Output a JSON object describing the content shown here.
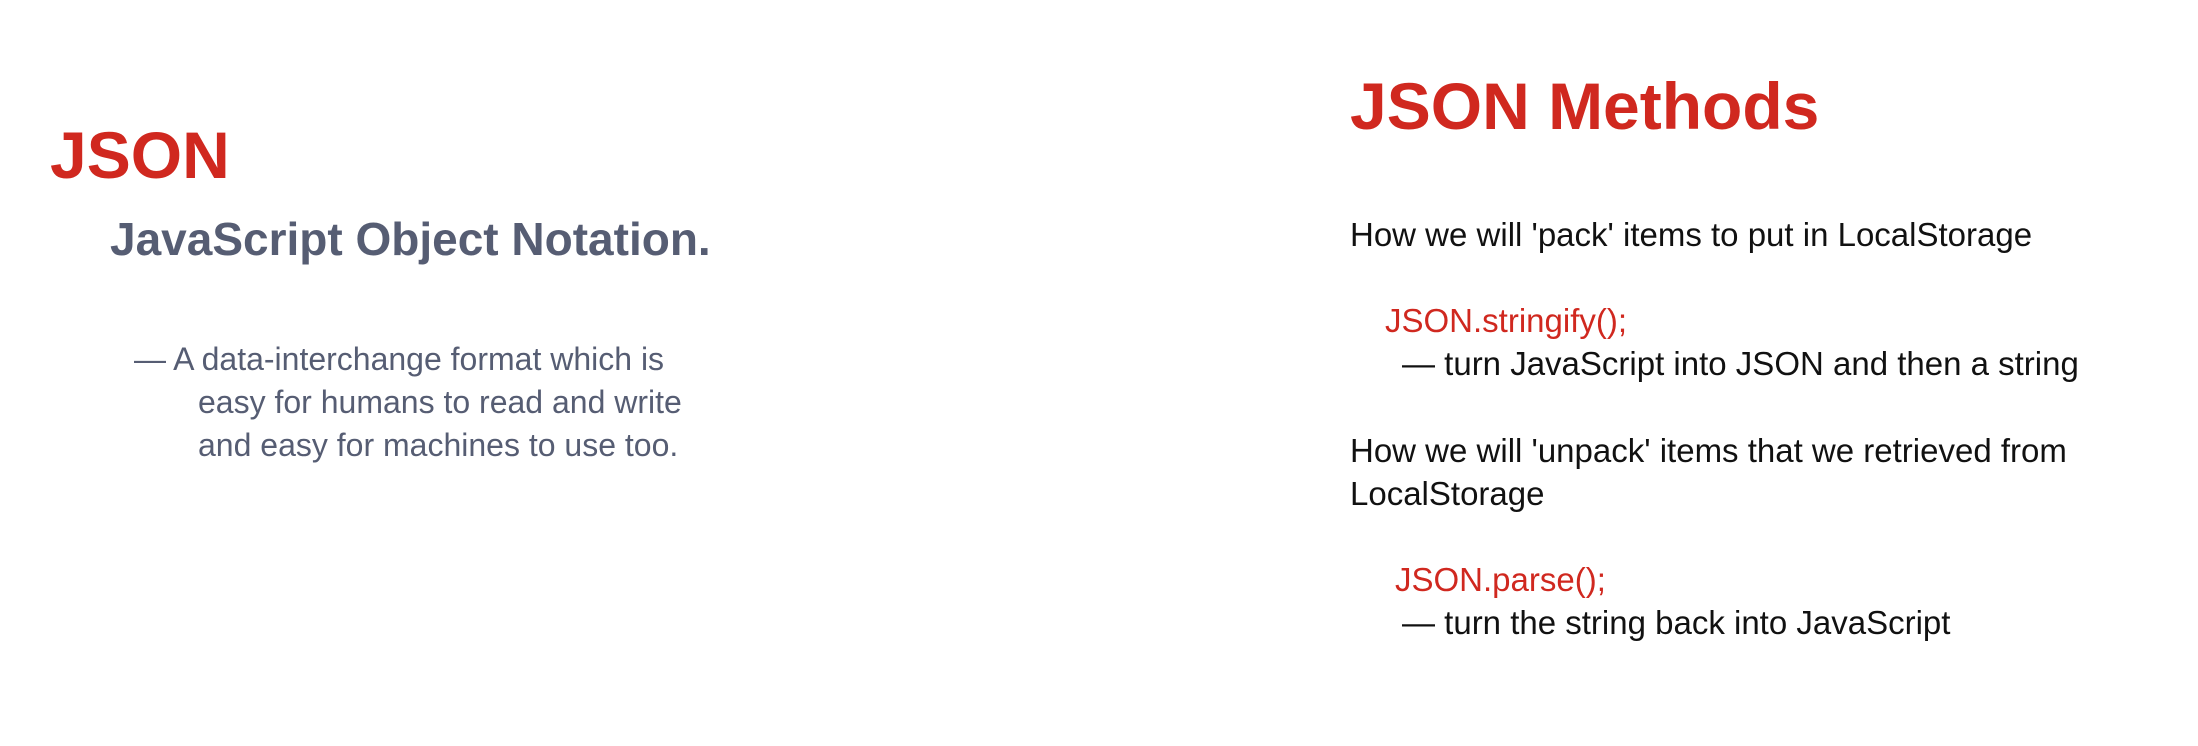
{
  "left_slide": {
    "title": "JSON",
    "subtitle": "JavaScript Object Notation.",
    "definition": {
      "line1": "— A data-interchange format which is",
      "line2": "easy for humans to read and write",
      "line3": "and easy for machines to use too."
    }
  },
  "right_slide": {
    "title": "JSON Methods",
    "pack": {
      "intro": "How we will 'pack' items to put in LocalStorage",
      "method": "JSON.stringify();",
      "description": "— turn JavaScript into JSON and then a string"
    },
    "unpack": {
      "intro_line1": "How we will 'unpack' items that we retrieved from",
      "intro_line2": "LocalStorage",
      "method": "JSON.parse();",
      "description": "— turn the string back into JavaScript"
    }
  },
  "colors": {
    "accent_red": "#d0281f",
    "muted_text": "#565d73",
    "body_text": "#111111"
  }
}
